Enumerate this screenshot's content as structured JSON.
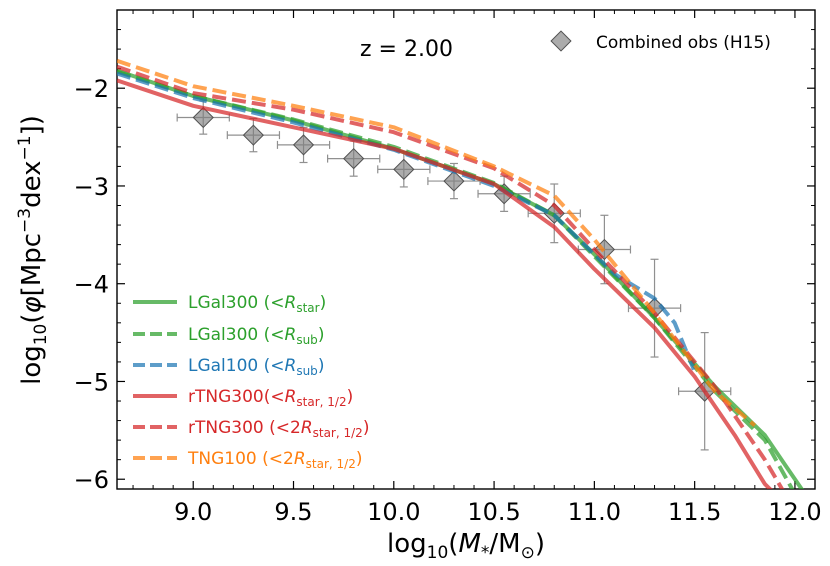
{
  "chart_data": {
    "type": "line",
    "title": "",
    "annotation": "z = 2.00",
    "xlabel": "log10(M*/M⊙)",
    "ylabel": "log10(φ[Mpc−3dex−1])",
    "xlim": [
      8.62,
      12.1
    ],
    "ylim": [
      -6.1,
      -1.2
    ],
    "xticks": [
      9.0,
      9.5,
      10.0,
      10.5,
      11.0,
      11.5,
      12.0
    ],
    "xtick_labels": [
      "9.0",
      "9.5",
      "10.0",
      "10.5",
      "11.0",
      "11.5",
      "12.0"
    ],
    "yticks": [
      -2,
      -3,
      -4,
      -5,
      -6
    ],
    "ytick_labels": [
      "−2",
      "−3",
      "−4",
      "−5",
      "−6"
    ],
    "observations": {
      "name": "Combined obs (H15)",
      "color": "#808080",
      "points": [
        {
          "x": 9.05,
          "y": -2.3,
          "xerr": 0.13,
          "yerr": 0.17
        },
        {
          "x": 9.3,
          "y": -2.48,
          "xerr": 0.13,
          "yerr": 0.17
        },
        {
          "x": 9.55,
          "y": -2.58,
          "xerr": 0.13,
          "yerr": 0.18
        },
        {
          "x": 9.8,
          "y": -2.72,
          "xerr": 0.13,
          "yerr": 0.18
        },
        {
          "x": 10.05,
          "y": -2.83,
          "xerr": 0.13,
          "yerr": 0.18
        },
        {
          "x": 10.3,
          "y": -2.95,
          "xerr": 0.13,
          "yerr": 0.18
        },
        {
          "x": 10.55,
          "y": -3.08,
          "xerr": 0.13,
          "yerr": 0.18
        },
        {
          "x": 10.8,
          "y": -3.28,
          "xerr": 0.13,
          "yerr": 0.3
        },
        {
          "x": 11.05,
          "y": -3.65,
          "xerr": 0.13,
          "yerr": 0.35
        },
        {
          "x": 11.3,
          "y": -4.25,
          "xerr": 0.13,
          "yerr": 0.5
        },
        {
          "x": 11.55,
          "y": -5.1,
          "xerr": 0.13,
          "yerr": 0.6
        }
      ]
    },
    "series": [
      {
        "name": "LGal300",
        "legend_main": "LGal300 (<",
        "legend_var": "R",
        "legend_sub": "star",
        "legend_tail": ")",
        "color": "#2ca02c",
        "style": "solid",
        "x": [
          8.62,
          9.0,
          9.5,
          10.0,
          10.5,
          10.8,
          11.0,
          11.3,
          11.6,
          11.85,
          11.95,
          12.05
        ],
        "y": [
          -1.82,
          -2.08,
          -2.33,
          -2.62,
          -2.98,
          -3.3,
          -3.7,
          -4.35,
          -5.05,
          -5.55,
          -5.85,
          -6.15
        ]
      },
      {
        "name": "LGal300 sub",
        "legend_main": "LGal300 (<",
        "legend_var": "R",
        "legend_sub": "sub",
        "legend_tail": ")",
        "color": "#2ca02c",
        "style": "dashed",
        "x": [
          8.62,
          9.0,
          9.5,
          10.0,
          10.5,
          10.8,
          11.0,
          11.3,
          11.6,
          11.85,
          12.0
        ],
        "y": [
          -1.83,
          -2.08,
          -2.32,
          -2.6,
          -2.97,
          -3.3,
          -3.72,
          -4.35,
          -5.1,
          -5.6,
          -6.15
        ]
      },
      {
        "name": "LGal100",
        "legend_main": "LGal100 (<",
        "legend_var": "R",
        "legend_sub": "sub",
        "legend_tail": ")",
        "color": "#1f77b4",
        "style": "dashed",
        "x": [
          8.62,
          9.0,
          9.5,
          10.0,
          10.5,
          10.8,
          11.1,
          11.3,
          11.4,
          11.5
        ],
        "y": [
          -1.85,
          -2.1,
          -2.35,
          -2.63,
          -3.0,
          -3.3,
          -3.9,
          -4.15,
          -4.4,
          -4.9
        ]
      },
      {
        "name": "rTNG300",
        "legend_main": "rTNG300(<",
        "legend_var": "R",
        "legend_sub": "star, 1/2",
        "legend_tail": ")",
        "color": "#d62728",
        "style": "solid",
        "x": [
          8.62,
          9.0,
          9.5,
          10.0,
          10.5,
          10.8,
          11.0,
          11.3,
          11.5,
          11.7,
          11.85,
          11.9
        ],
        "y": [
          -1.92,
          -2.18,
          -2.4,
          -2.62,
          -2.98,
          -3.42,
          -3.85,
          -4.45,
          -4.95,
          -5.55,
          -6.05,
          -6.15
        ]
      },
      {
        "name": "rTNG300 2R",
        "legend_main": "rTNG300 (<2",
        "legend_var": "R",
        "legend_sub": "star, 1/2",
        "legend_tail": ")",
        "color": "#d62728",
        "style": "dashed",
        "x": [
          8.62,
          9.0,
          9.5,
          10.0,
          10.5,
          10.8,
          11.0,
          11.3,
          11.6,
          11.85,
          11.95
        ],
        "y": [
          -1.78,
          -2.05,
          -2.22,
          -2.45,
          -2.82,
          -3.2,
          -3.65,
          -4.3,
          -5.05,
          -5.8,
          -6.15
        ]
      },
      {
        "name": "TNG100",
        "legend_main": "TNG100 (<2",
        "legend_var": "R",
        "legend_sub": "star, 1/2",
        "legend_tail": ")",
        "color": "#ff7f0e",
        "style": "dashed",
        "x": [
          8.62,
          9.0,
          9.5,
          10.0,
          10.5,
          10.8,
          11.0,
          11.3,
          11.6,
          11.8
        ],
        "y": [
          -1.72,
          -1.98,
          -2.18,
          -2.4,
          -2.8,
          -3.1,
          -3.55,
          -4.3,
          -5.1,
          -5.45
        ]
      }
    ]
  }
}
